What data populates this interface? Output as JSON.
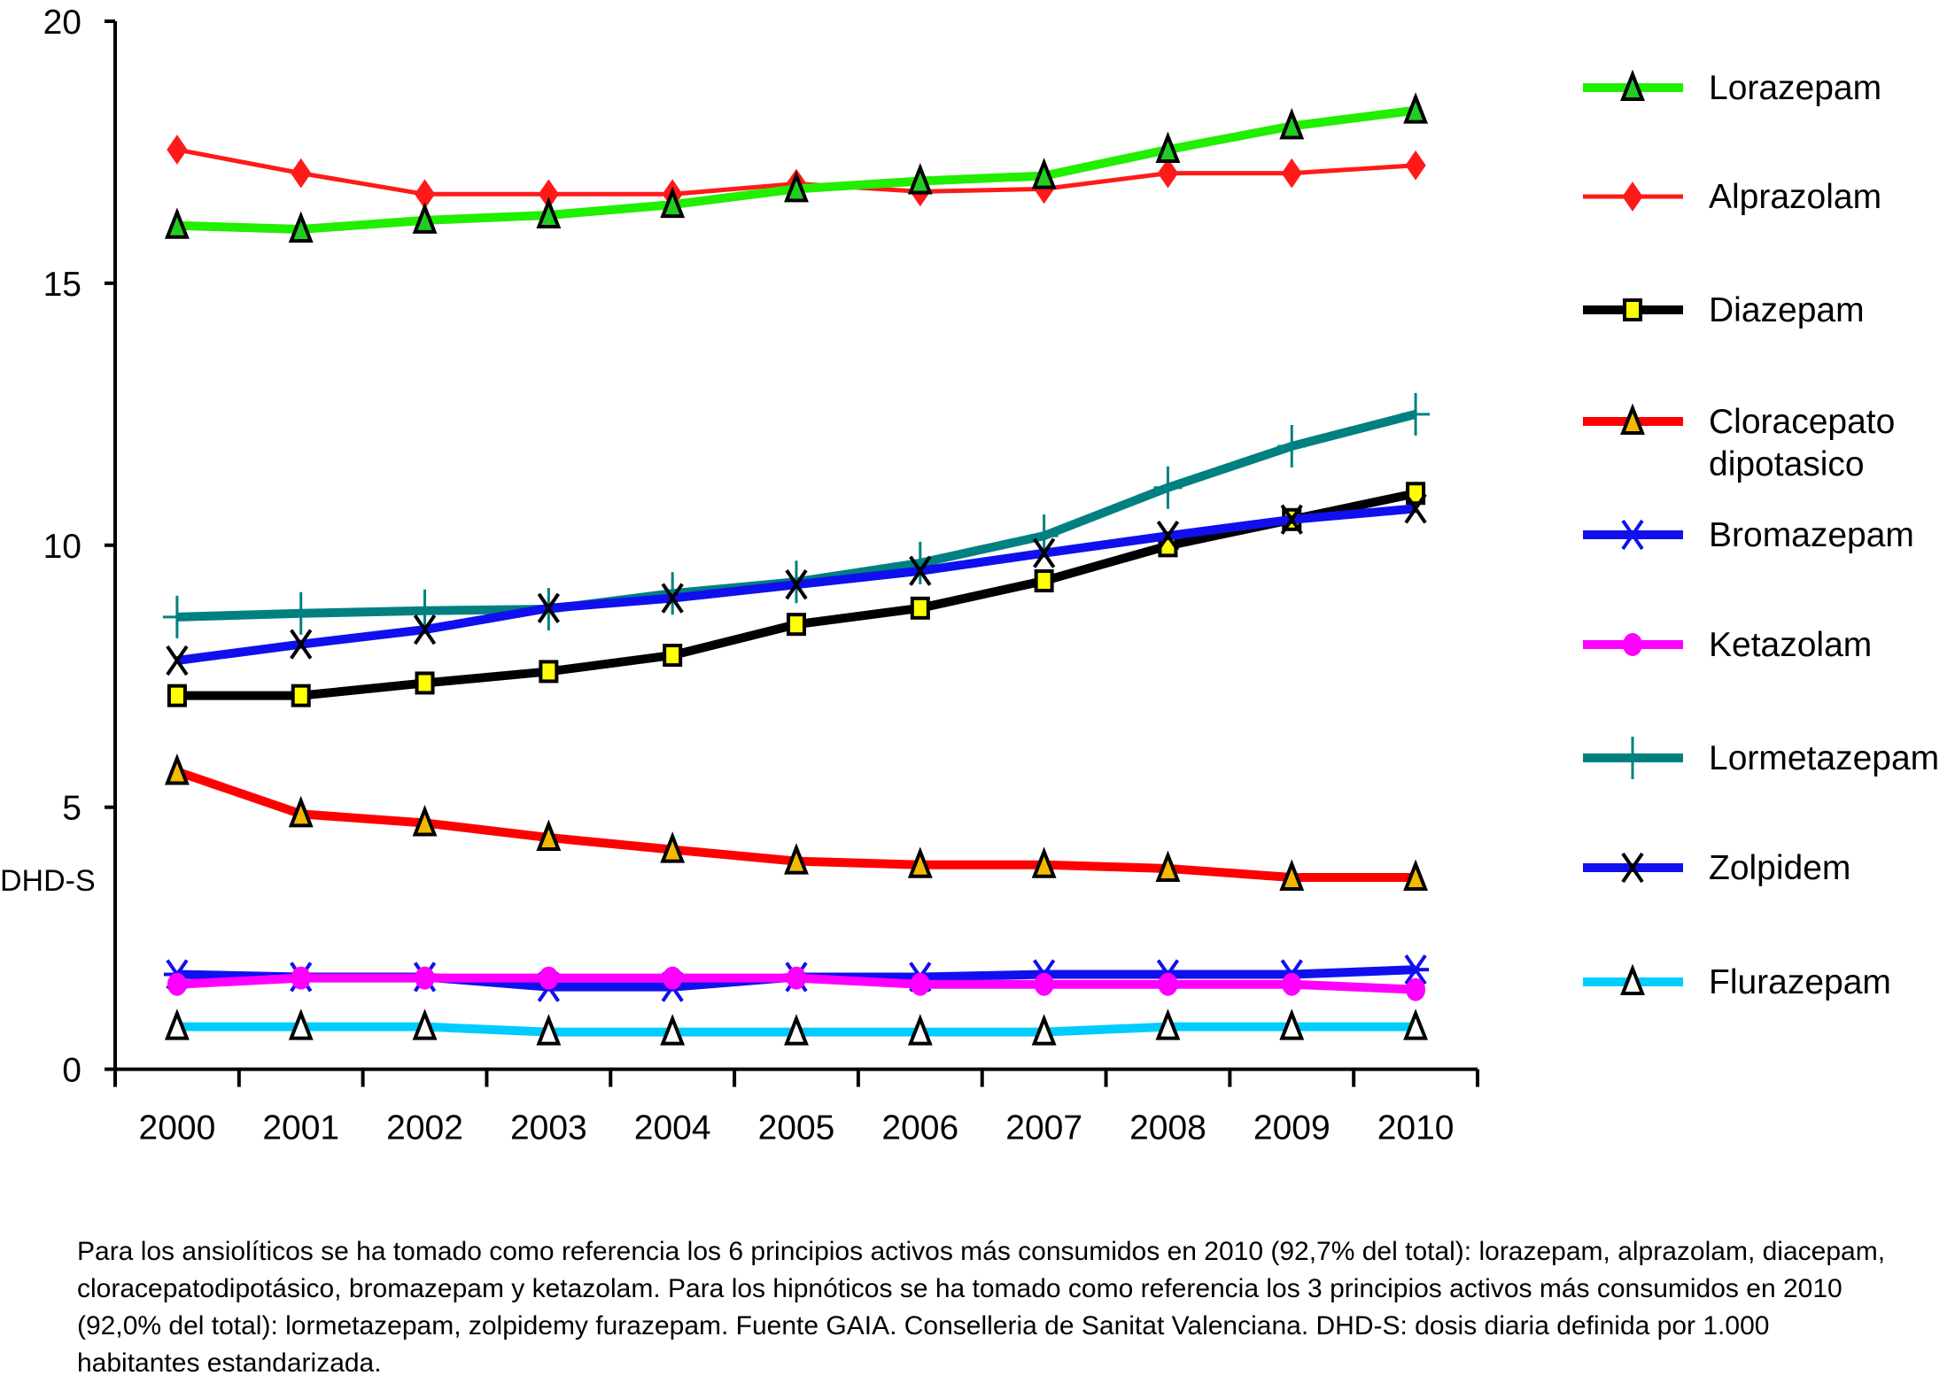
{
  "chart_data": {
    "type": "line",
    "title": "",
    "xlabel": "",
    "ylabel": "DHD-S",
    "ylim": [
      0,
      20
    ],
    "yticks": [
      "0",
      "5",
      "10",
      "15",
      "20"
    ],
    "categories": [
      "2000",
      "2001",
      "2002",
      "2003",
      "2004",
      "2005",
      "2006",
      "2007",
      "2008",
      "2009",
      "2010"
    ],
    "grid": false,
    "legend_position": "right",
    "series": [
      {
        "name": "Lorazepam",
        "color": "#22ee00",
        "marker": "triangle",
        "marker_fill": "#22cc22",
        "values": [
          16.1,
          16.03,
          16.2,
          16.3,
          16.5,
          16.8,
          16.95,
          17.05,
          17.55,
          18.0,
          18.3
        ]
      },
      {
        "name": "Alprazolam",
        "color": "#ff1a1a",
        "marker": "diamond",
        "marker_fill": "#ff1a1a",
        "values": [
          17.55,
          17.1,
          16.7,
          16.7,
          16.7,
          16.9,
          16.75,
          16.8,
          17.1,
          17.1,
          17.25
        ]
      },
      {
        "name": "Diazepam",
        "color": "#000000",
        "marker": "square",
        "marker_fill": "#ffff00",
        "values": [
          7.13,
          7.13,
          7.37,
          7.59,
          7.9,
          8.49,
          8.8,
          9.32,
          9.99,
          10.49,
          10.99
        ]
      },
      {
        "name": "Cloracepato dipotasico",
        "name_lines": [
          "Cloracepato",
          "dipotasico"
        ],
        "color": "#ff0000",
        "marker": "triangle",
        "marker_fill": "#f5b800",
        "values": [
          5.68,
          4.87,
          4.7,
          4.42,
          4.19,
          3.97,
          3.9,
          3.9,
          3.83,
          3.66,
          3.66
        ]
      },
      {
        "name": "Bromazepam",
        "color": "#1010ee",
        "marker": "asterisk",
        "marker_fill": "#1010ee",
        "values": [
          1.81,
          1.76,
          1.76,
          1.57,
          1.57,
          1.76,
          1.76,
          1.81,
          1.81,
          1.81,
          1.9
        ]
      },
      {
        "name": "Ketazolam",
        "color": "#ff00ff",
        "marker": "circle",
        "marker_fill": "#ff00ff",
        "values": [
          1.62,
          1.74,
          1.74,
          1.74,
          1.74,
          1.74,
          1.62,
          1.62,
          1.62,
          1.62,
          1.52
        ]
      },
      {
        "name": "Lormetazepam",
        "color": "#008080",
        "marker": "plus",
        "marker_fill": "#008080",
        "values": [
          8.63,
          8.7,
          8.75,
          8.78,
          9.08,
          9.3,
          9.66,
          10.18,
          11.1,
          11.89,
          12.5
        ]
      },
      {
        "name": "Zolpidem",
        "color": "#1010ee",
        "marker": "x",
        "marker_fill": "#000000",
        "values": [
          7.8,
          8.11,
          8.39,
          8.8,
          8.99,
          9.25,
          9.51,
          9.85,
          10.18,
          10.49,
          10.7
        ]
      },
      {
        "name": "Flurazepam",
        "color": "#00ccff",
        "marker": "triangle",
        "marker_fill": "#ffffff",
        "values": [
          0.81,
          0.81,
          0.81,
          0.71,
          0.71,
          0.71,
          0.71,
          0.71,
          0.81,
          0.81,
          0.81
        ]
      }
    ]
  },
  "footnote": "Para los ansiolíticos se ha tomado como referencia los 6 principios activos más consumidos en 2010 (92,7% del total): lorazepam,  alprazolam, diacepam, cloracepatodipotásico, bromazepam y ketazolam. Para los hipnóticos se ha tomado como referencia los 3 principios activos más consumidos en 2010 (92,0% del total): lormetazepam, zolpidemy furazepam. Fuente GAIA. Conselleria de Sanitat Valenciana. DHD-S: dosis diaria definida por 1.000 habitantes estandarizada."
}
